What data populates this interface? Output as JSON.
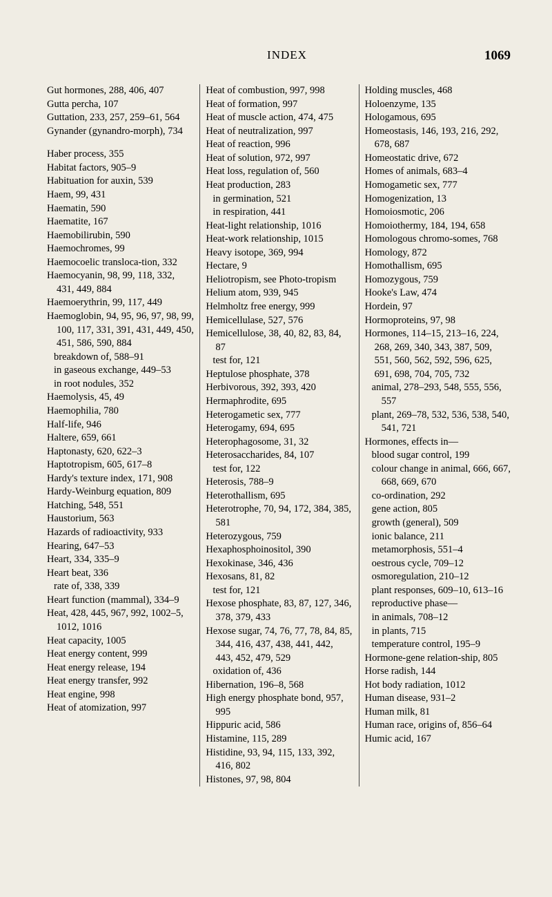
{
  "header": {
    "title": "INDEX",
    "page_number": "1069"
  },
  "columns": [
    {
      "entries": [
        {
          "text": "Gut hormones, 288, 406, 407"
        },
        {
          "text": "Gutta percha, 107"
        },
        {
          "text": "Guttation, 233, 257, 259–61, 564"
        },
        {
          "text": "Gynander (gynandro-morph), 734"
        },
        {
          "text": "Haber process, 355",
          "gap": true
        },
        {
          "text": "Habitat factors, 905–9"
        },
        {
          "text": "Habituation for auxin, 539"
        },
        {
          "text": "Haem, 99, 431"
        },
        {
          "text": "Haematin, 590"
        },
        {
          "text": "Haematite, 167"
        },
        {
          "text": "Haemobilirubin, 590"
        },
        {
          "text": "Haemochromes, 99"
        },
        {
          "text": "Haemocoelic transloca-tion, 332"
        },
        {
          "text": "Haemocyanin, 98, 99, 118, 332, 431, 449, 884"
        },
        {
          "text": "Haemoerythrin, 99, 117, 449"
        },
        {
          "text": "Haemoglobin, 94, 95, 96, 97, 98, 99, 100, 117, 331, 391, 431, 449, 450, 451, 586, 590, 884"
        },
        {
          "text": "breakdown of, 588–91",
          "sub": true
        },
        {
          "text": "in gaseous exchange, 449–53",
          "sub": true
        },
        {
          "text": "in root nodules, 352",
          "sub": true
        },
        {
          "text": "Haemolysis, 45, 49"
        },
        {
          "text": "Haemophilia, 780"
        },
        {
          "text": "Half-life, 946"
        },
        {
          "text": "Haltere, 659, 661"
        },
        {
          "text": "Haptonasty, 620, 622–3"
        },
        {
          "text": "Haptotropism, 605, 617–8"
        },
        {
          "text": "Hardy's texture index, 171, 908"
        },
        {
          "text": "Hardy-Weinburg equation, 809"
        },
        {
          "text": "Hatching, 548, 551"
        },
        {
          "text": "Haustorium, 563"
        },
        {
          "text": "Hazards of radioactivity, 933"
        },
        {
          "text": "Hearing, 647–53"
        },
        {
          "text": "Heart, 334, 335–9"
        },
        {
          "text": "Heart beat, 336"
        },
        {
          "text": "rate of, 338, 339",
          "sub": true
        },
        {
          "text": "Heart function (mammal), 334–9"
        },
        {
          "text": "Heat, 428, 445, 967, 992, 1002–5, 1012, 1016"
        },
        {
          "text": "Heat capacity, 1005"
        },
        {
          "text": "Heat energy content, 999"
        },
        {
          "text": "Heat energy release, 194"
        },
        {
          "text": "Heat energy transfer, 992"
        },
        {
          "text": "Heat engine, 998"
        },
        {
          "text": "Heat of atomization, 997"
        }
      ]
    },
    {
      "entries": [
        {
          "text": "Heat of combustion, 997, 998"
        },
        {
          "text": "Heat of formation, 997"
        },
        {
          "text": "Heat of muscle action, 474, 475"
        },
        {
          "text": "Heat of neutralization, 997"
        },
        {
          "text": "Heat of reaction, 996"
        },
        {
          "text": "Heat of solution, 972, 997"
        },
        {
          "text": "Heat loss, regulation of, 560"
        },
        {
          "text": "Heat production, 283"
        },
        {
          "text": "in germination, 521",
          "sub": true
        },
        {
          "text": "in respiration, 441",
          "sub": true
        },
        {
          "text": "Heat-light relationship, 1016"
        },
        {
          "text": "Heat-work relationship, 1015"
        },
        {
          "text": "Heavy isotope, 369, 994"
        },
        {
          "text": "Hectare, 9"
        },
        {
          "text": "Heliotropism, see Photo-tropism"
        },
        {
          "text": "Helium atom, 939, 945"
        },
        {
          "text": "Helmholtz free energy, 999"
        },
        {
          "text": "Hemicellulase, 527, 576"
        },
        {
          "text": "Hemicellulose, 38, 40, 82, 83, 84, 87"
        },
        {
          "text": "test for, 121",
          "sub": true
        },
        {
          "text": "Heptulose phosphate, 378"
        },
        {
          "text": "Herbivorous, 392, 393, 420"
        },
        {
          "text": "Hermaphrodite, 695"
        },
        {
          "text": "Heterogametic sex, 777"
        },
        {
          "text": "Heterogamy, 694, 695"
        },
        {
          "text": "Heterophagosome, 31, 32"
        },
        {
          "text": "Heterosaccharides, 84, 107"
        },
        {
          "text": "test for, 122",
          "sub": true
        },
        {
          "text": "Heterosis, 788–9"
        },
        {
          "text": "Heterothallism, 695"
        },
        {
          "text": "Heterotrophe, 70, 94, 172, 384, 385, 581"
        },
        {
          "text": "Heterozygous, 759"
        },
        {
          "text": "Hexaphosphoinositol, 390"
        },
        {
          "text": "Hexokinase, 346, 436"
        },
        {
          "text": "Hexosans, 81, 82"
        },
        {
          "text": "test for, 121",
          "sub": true
        },
        {
          "text": "Hexose phosphate, 83, 87, 127, 346, 378, 379, 433"
        },
        {
          "text": "Hexose sugar, 74, 76, 77, 78, 84, 85, 344, 416, 437, 438, 441, 442, 443, 452, 479, 529"
        },
        {
          "text": "oxidation of, 436",
          "sub": true
        },
        {
          "text": "Hibernation, 196–8, 568"
        },
        {
          "text": "High energy phosphate bond, 957, 995"
        },
        {
          "text": "Hippuric acid, 586"
        },
        {
          "text": "Histamine, 115, 289"
        },
        {
          "text": "Histidine, 93, 94, 115, 133, 392, 416, 802"
        },
        {
          "text": "Histones, 97, 98, 804"
        }
      ]
    },
    {
      "entries": [
        {
          "text": "Holding muscles, 468"
        },
        {
          "text": "Holoenzyme, 135"
        },
        {
          "text": "Hologamous, 695"
        },
        {
          "text": "Homeostasis, 146, 193, 216, 292, 678, 687"
        },
        {
          "text": "Homeostatic drive, 672"
        },
        {
          "text": "Homes of animals, 683–4"
        },
        {
          "text": "Homogametic sex, 777"
        },
        {
          "text": "Homogenization, 13"
        },
        {
          "text": "Homoiosmotic, 206"
        },
        {
          "text": "Homoiothermy, 184, 194, 658"
        },
        {
          "text": "Homologous chromo-somes, 768"
        },
        {
          "text": "Homology, 872"
        },
        {
          "text": "Homothallism, 695"
        },
        {
          "text": "Homozygous, 759"
        },
        {
          "text": "Hooke's Law, 474"
        },
        {
          "text": "Hordein, 97"
        },
        {
          "text": "Hormoproteins, 97, 98"
        },
        {
          "text": "Hormones, 114–15, 213–16, 224, 268, 269, 340, 343, 387, 509, 551, 560, 562, 592, 596, 625, 691, 698, 704, 705, 732"
        },
        {
          "text": "animal, 278–293, 548, 555, 556, 557",
          "sub": true
        },
        {
          "text": "plant, 269–78, 532, 536, 538, 540, 541, 721",
          "sub": true
        },
        {
          "text": "Hormones, effects in—"
        },
        {
          "text": "blood sugar control, 199",
          "sub": true
        },
        {
          "text": "colour change in animal, 666, 667, 668, 669, 670",
          "sub": true
        },
        {
          "text": "co-ordination, 292",
          "sub": true
        },
        {
          "text": "gene action, 805",
          "sub": true
        },
        {
          "text": "growth (general), 509",
          "sub": true
        },
        {
          "text": "ionic balance, 211",
          "sub": true
        },
        {
          "text": "metamorphosis, 551–4",
          "sub": true
        },
        {
          "text": "oestrous cycle, 709–12",
          "sub": true
        },
        {
          "text": "osmoregulation, 210–12",
          "sub": true
        },
        {
          "text": "plant responses, 609–10, 613–16",
          "sub": true
        },
        {
          "text": "reproductive phase—",
          "sub": true
        },
        {
          "text": "in animals, 708–12",
          "sub": true
        },
        {
          "text": "in plants, 715",
          "sub": true
        },
        {
          "text": "temperature control, 195–9",
          "sub": true
        },
        {
          "text": "Hormone-gene relation-ship, 805"
        },
        {
          "text": "Horse radish, 144"
        },
        {
          "text": "Hot body radiation, 1012"
        },
        {
          "text": "Human disease, 931–2"
        },
        {
          "text": "Human milk, 81"
        },
        {
          "text": "Human race, origins of, 856–64"
        },
        {
          "text": "Humic acid, 167"
        }
      ]
    }
  ]
}
